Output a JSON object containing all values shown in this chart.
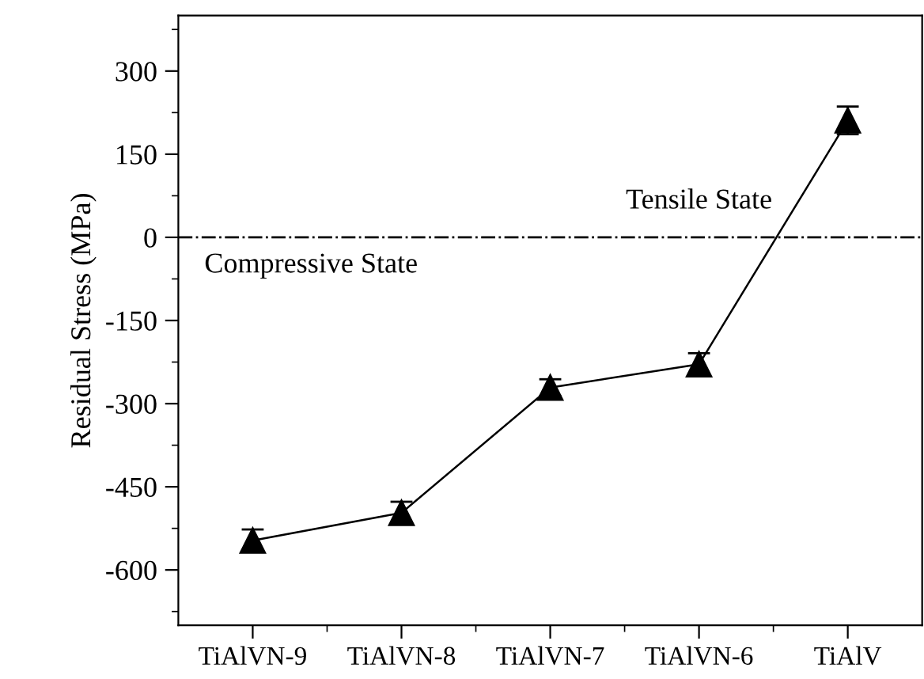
{
  "chart_data": {
    "type": "line",
    "ylabel": "Residual Stress (MPa)",
    "categories": [
      "TiAlVN-9",
      "TiAlVN-8",
      "TiAlVN-7",
      "TiAlVN-6",
      "TiAlV"
    ],
    "series": [
      {
        "color": "#000000",
        "values": [
          -547,
          -497,
          -271,
          -229,
          211
        ],
        "errors": [
          20,
          20,
          15,
          20,
          25
        ]
      }
    ],
    "marker": "triangle",
    "line_style": "solid",
    "ylim": [
      -700,
      400
    ],
    "yticks": [
      -600,
      -450,
      -300,
      -150,
      0,
      150,
      300
    ],
    "ref_lines": [
      {
        "axis": "y",
        "value": 0,
        "color": "#000000",
        "line_style": "dashdot"
      }
    ],
    "annotations": [
      "Tensile State",
      "Compressive State"
    ],
    "grid": false,
    "legend": false
  }
}
